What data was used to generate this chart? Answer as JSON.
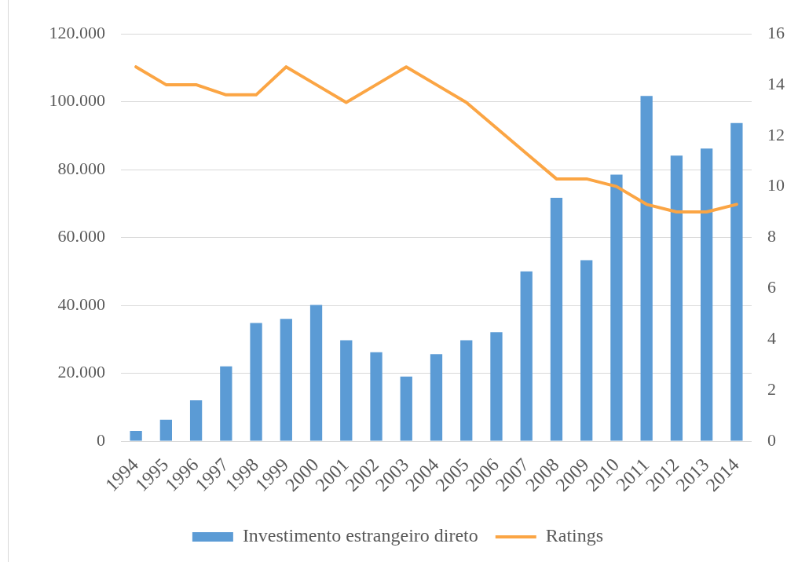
{
  "chart_data": {
    "type": "bar",
    "categories": [
      "1994",
      "1995",
      "1996",
      "1997",
      "1998",
      "1999",
      "2000",
      "2001",
      "2002",
      "2003",
      "2004",
      "2005",
      "2006",
      "2007",
      "2008",
      "2009",
      "2010",
      "2011",
      "2012",
      "2013",
      "2014"
    ],
    "series": [
      {
        "name": "Investimento estrangeiro direto",
        "color": "#5b9bd5",
        "values": [
          3000,
          6300,
          12000,
          22000,
          34800,
          36000,
          40100,
          29700,
          26200,
          19000,
          25600,
          29700,
          32100,
          50000,
          71700,
          53300,
          78500,
          101700,
          84100,
          86200,
          93700
        ]
      },
      {
        "name": "Ratings",
        "type": "line",
        "axis": "y2",
        "color": "#fba544",
        "values": [
          14.7,
          14.0,
          14.0,
          13.6,
          13.6,
          14.7,
          14.0,
          13.3,
          14.0,
          14.7,
          14.0,
          13.3,
          12.3,
          11.3,
          10.3,
          10.3,
          10.0,
          9.3,
          9.0,
          9.0,
          9.3
        ]
      }
    ],
    "ylim": [
      0,
      120000
    ],
    "yticks": [
      0,
      {
        "value": 20000,
        "label": "20.000"
      },
      {
        "value": 40000,
        "label": "40.000"
      },
      {
        "value": 60000,
        "label": "60.000"
      },
      {
        "value": 80000,
        "label": "80.000"
      },
      {
        "value": 100000,
        "label": "100.000"
      },
      {
        "value": 120000,
        "label": "120.000"
      }
    ],
    "y2lim": [
      0,
      16
    ],
    "y2ticks": [
      0,
      2,
      4,
      6,
      8,
      10,
      12,
      14,
      16
    ],
    "grid": "y",
    "legend": "bottom",
    "marker": "none"
  }
}
